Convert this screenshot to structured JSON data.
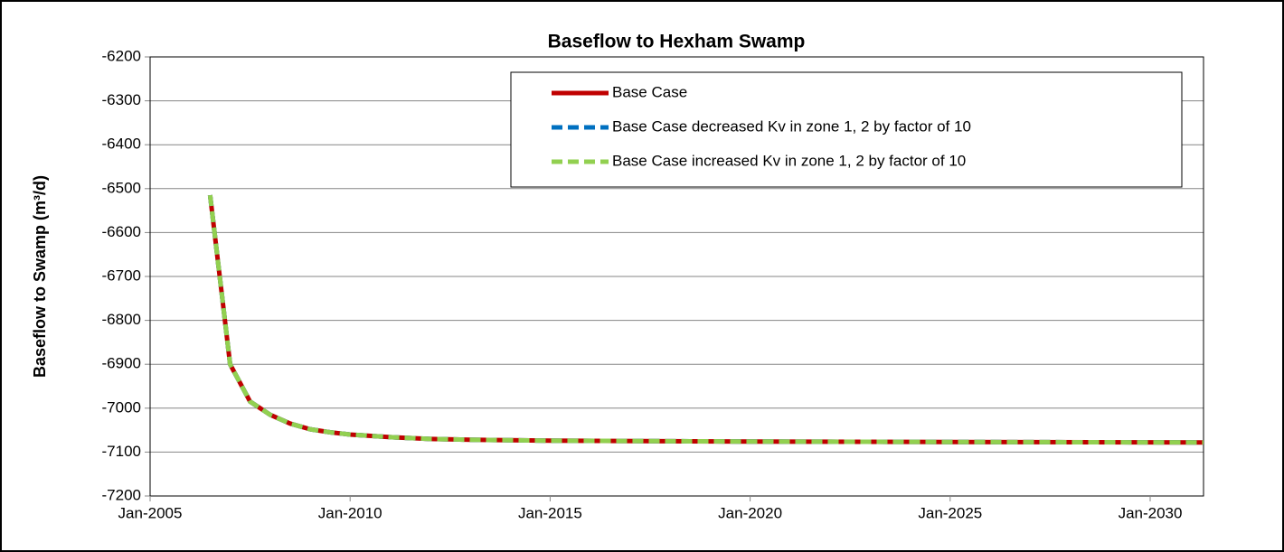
{
  "chart_data": {
    "type": "line",
    "title": "Baseflow to Hexham Swamp",
    "y_label": "Baseflow to Swamp (m³/d)",
    "x": [
      "2006-07",
      "2007-01",
      "2007-07",
      "2008-01",
      "2008-07",
      "2009-01",
      "2009-07",
      "2010-01",
      "2011-01",
      "2012-01",
      "2013-01",
      "2015-01",
      "2020-01",
      "2025-01",
      "2031-05"
    ],
    "series": [
      {
        "name": "Base Case",
        "color": "#c00000",
        "dashed": false,
        "values": [
          -6515,
          -6900,
          -6985,
          -7015,
          -7035,
          -7048,
          -7055,
          -7060,
          -7066,
          -7070,
          -7072,
          -7074,
          -7076,
          -7077,
          -7078
        ]
      },
      {
        "name": "Base Case decreased Kv in zone 1, 2 by factor of 10",
        "color": "#0070c0",
        "dashed": true,
        "values": [
          -6515,
          -6900,
          -6985,
          -7015,
          -7035,
          -7048,
          -7055,
          -7060,
          -7066,
          -7070,
          -7072,
          -7074,
          -7076,
          -7077,
          -7078
        ]
      },
      {
        "name": "Base Case increased Kv in zone 1, 2 by factor of 10",
        "color": "#92d050",
        "dashed": true,
        "values": [
          -6515,
          -6900,
          -6985,
          -7015,
          -7035,
          -7048,
          -7055,
          -7060,
          -7066,
          -7070,
          -7072,
          -7074,
          -7076,
          -7077,
          -7078
        ]
      }
    ],
    "xlim": [
      "2005-01",
      "2031-05"
    ],
    "xticks": [
      {
        "value": "2005-01",
        "label": "Jan-2005"
      },
      {
        "value": "2010-01",
        "label": "Jan-2010"
      },
      {
        "value": "2015-01",
        "label": "Jan-2015"
      },
      {
        "value": "2020-01",
        "label": "Jan-2020"
      },
      {
        "value": "2025-01",
        "label": "Jan-2025"
      },
      {
        "value": "2030-01",
        "label": "Jan-2030"
      }
    ],
    "ylim": [
      -7200,
      -6200
    ],
    "yticks": [
      -7200,
      -7100,
      -7000,
      -6900,
      -6800,
      -6700,
      -6600,
      -6500,
      -6400,
      -6300,
      -6200
    ],
    "grid": true,
    "legend": "top-right"
  }
}
